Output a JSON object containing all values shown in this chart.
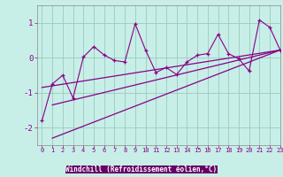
{
  "xlabel": "Windchill (Refroidissement éolien,°C)",
  "bg_color": "#c8eee8",
  "plot_bg_color": "#c8eee8",
  "bottom_bg_color": "#660066",
  "grid_color": "#99ccbb",
  "line_color": "#880088",
  "tick_color": "#880088",
  "xlabel_color": "#ffffff",
  "xlabel_bg": "#660066",
  "x_data": [
    0,
    1,
    2,
    3,
    4,
    5,
    6,
    7,
    8,
    9,
    10,
    11,
    12,
    13,
    14,
    15,
    16,
    17,
    18,
    19,
    20,
    21,
    22,
    23
  ],
  "y_data": [
    -1.8,
    -0.75,
    -0.5,
    -1.15,
    0.02,
    0.32,
    0.08,
    -0.08,
    -0.12,
    0.97,
    0.22,
    -0.42,
    -0.28,
    -0.48,
    -0.12,
    0.07,
    0.12,
    0.67,
    0.12,
    -0.03,
    -0.38,
    1.08,
    0.87,
    0.22
  ],
  "reg_lines": [
    {
      "x": [
        0,
        23
      ],
      "y": [
        -0.85,
        0.22
      ]
    },
    {
      "x": [
        1,
        23
      ],
      "y": [
        -1.35,
        0.22
      ]
    },
    {
      "x": [
        1,
        23
      ],
      "y": [
        -2.3,
        0.22
      ]
    }
  ],
  "ylim": [
    -2.5,
    1.5
  ],
  "xlim": [
    -0.5,
    23
  ],
  "yticks": [
    -2,
    -1,
    0,
    1
  ],
  "xticks": [
    0,
    1,
    2,
    3,
    4,
    5,
    6,
    7,
    8,
    9,
    10,
    11,
    12,
    13,
    14,
    15,
    16,
    17,
    18,
    19,
    20,
    21,
    22,
    23
  ]
}
